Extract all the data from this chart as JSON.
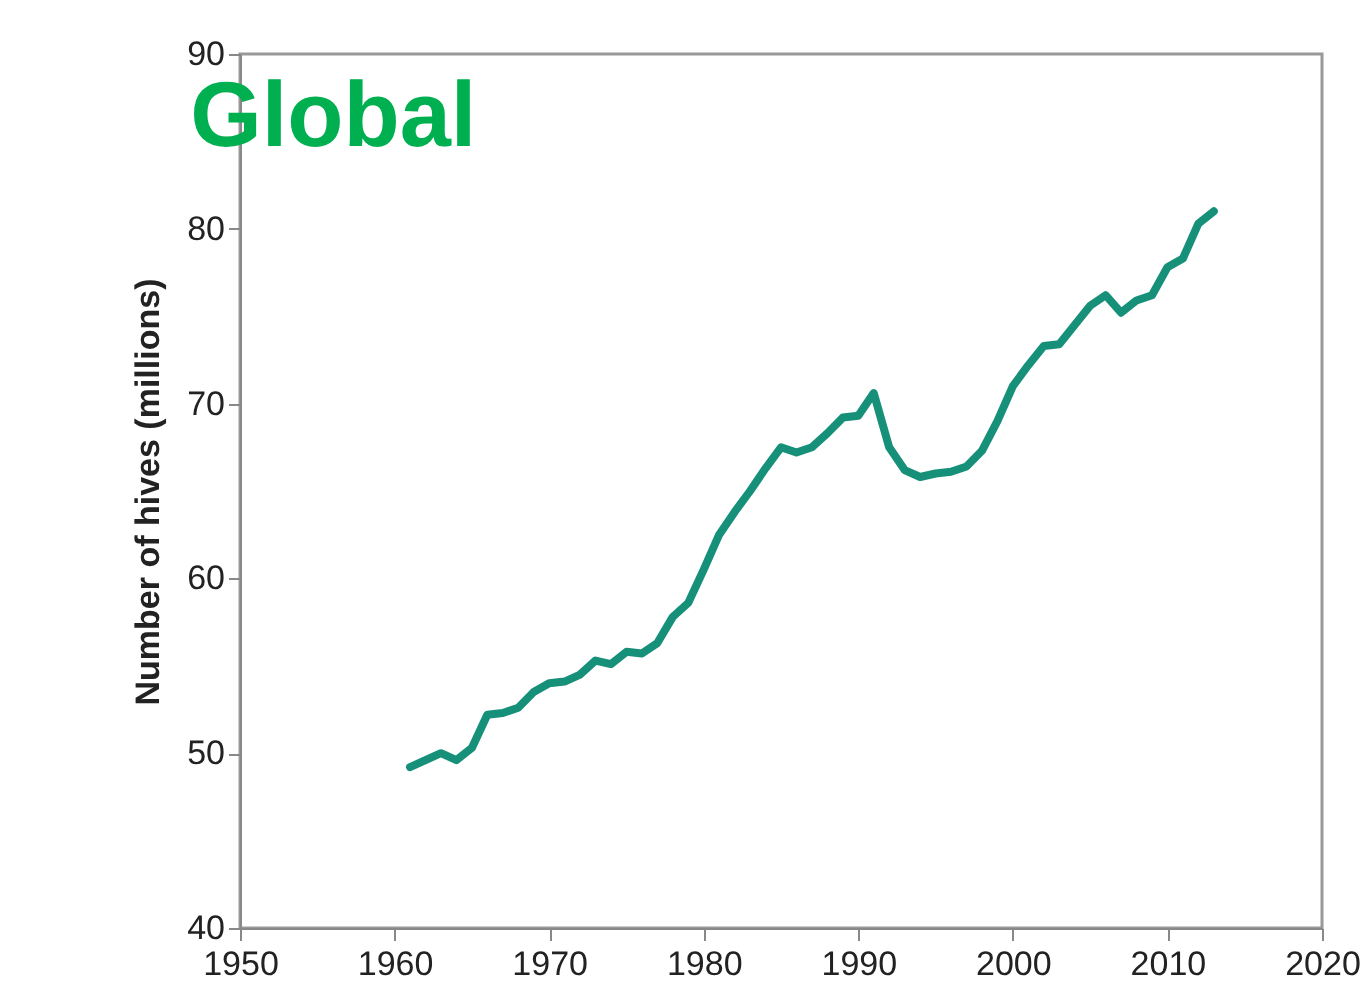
{
  "chart_data": {
    "type": "line",
    "title": "Global",
    "ylabel": "Number of hives (millions)",
    "x": [
      1961,
      1962,
      1963,
      1964,
      1965,
      1966,
      1967,
      1968,
      1969,
      1970,
      1971,
      1972,
      1973,
      1974,
      1975,
      1976,
      1977,
      1978,
      1979,
      1980,
      1981,
      1982,
      1983,
      1984,
      1985,
      1986,
      1987,
      1988,
      1989,
      1990,
      1991,
      1992,
      1993,
      1994,
      1995,
      1996,
      1997,
      1998,
      1999,
      2000,
      2001,
      2002,
      2003,
      2004,
      2005,
      2006,
      2007,
      2008,
      2009,
      2010,
      2011,
      2012,
      2013
    ],
    "series": [
      {
        "color": "#17907a",
        "values": [
          49.2,
          49.6,
          50.0,
          49.6,
          50.3,
          52.2,
          52.3,
          52.6,
          53.5,
          54.0,
          54.1,
          54.5,
          55.3,
          55.1,
          55.8,
          55.7,
          56.3,
          57.8,
          58.6,
          60.5,
          62.5,
          63.8,
          65.0,
          66.3,
          67.5,
          67.2,
          67.5,
          68.3,
          69.2,
          69.3,
          70.6,
          67.5,
          66.2,
          65.8,
          66.0,
          66.1,
          66.4,
          67.3,
          69.0,
          71.0,
          72.2,
          73.3,
          73.4,
          74.5,
          75.6,
          76.2,
          75.2,
          75.9,
          76.2,
          77.8,
          78.3,
          80.3,
          81.0
        ]
      }
    ],
    "xlim": [
      1950,
      2020
    ],
    "xticks": [
      1950,
      1960,
      1970,
      1980,
      1990,
      2000,
      2010,
      2020
    ],
    "ylim": [
      40,
      90
    ],
    "yticks": [
      40,
      50,
      60,
      70,
      80,
      90
    ],
    "grid": false,
    "marker": "none",
    "line_style": "solid"
  }
}
